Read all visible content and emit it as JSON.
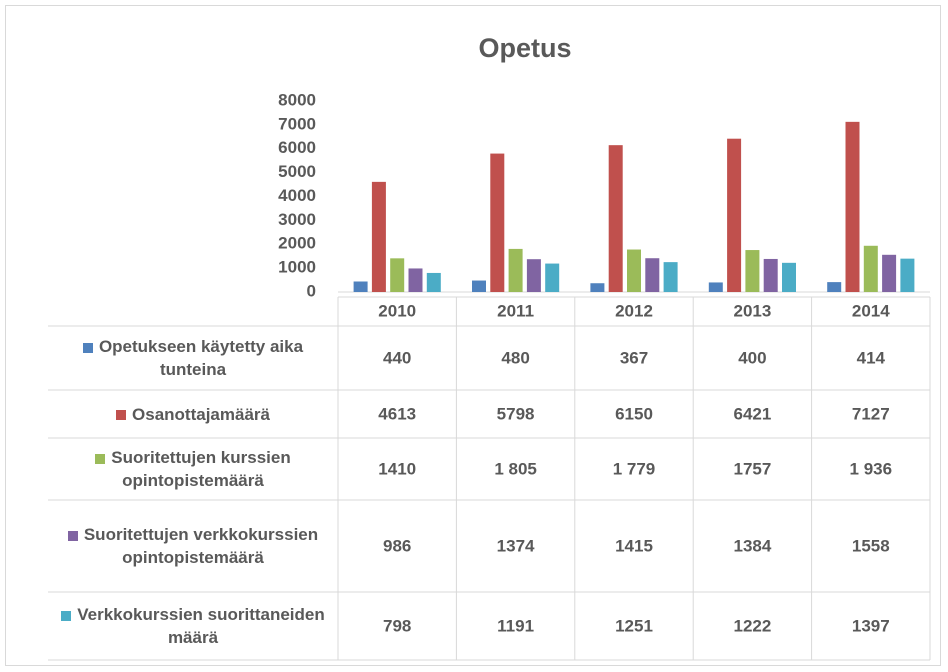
{
  "chart_data": {
    "type": "bar",
    "title": "Opetus",
    "categories": [
      "2010",
      "2011",
      "2012",
      "2013",
      "2014"
    ],
    "series": [
      {
        "name": "Opetukseen käytetty aika tunteina",
        "color": "#4f81bd",
        "values": [
          440,
          480,
          367,
          400,
          414
        ]
      },
      {
        "name": "Osanottajamäärä",
        "color": "#c0504d",
        "values": [
          4613,
          5798,
          6150,
          6421,
          7127
        ]
      },
      {
        "name": "Suoritettujen kurssien opintopistemäärä",
        "color": "#9bbb59",
        "values": [
          1410,
          1805,
          1779,
          1757,
          1936
        ],
        "value_labels": [
          "1410",
          "1 805",
          "1 779",
          "1757",
          "1 936"
        ]
      },
      {
        "name": "Suoritettujen verkkokurssien opintopistemäärä",
        "color": "#8064a2",
        "values": [
          986,
          1374,
          1415,
          1384,
          1558
        ]
      },
      {
        "name": "Verkkokurssien suorittaneiden määrä",
        "color": "#4bacc6",
        "values": [
          798,
          1191,
          1251,
          1222,
          1397
        ]
      }
    ],
    "ylim": [
      0,
      8000
    ],
    "yticks": [
      0,
      1000,
      2000,
      3000,
      4000,
      5000,
      6000,
      7000,
      8000
    ],
    "grid": false
  }
}
